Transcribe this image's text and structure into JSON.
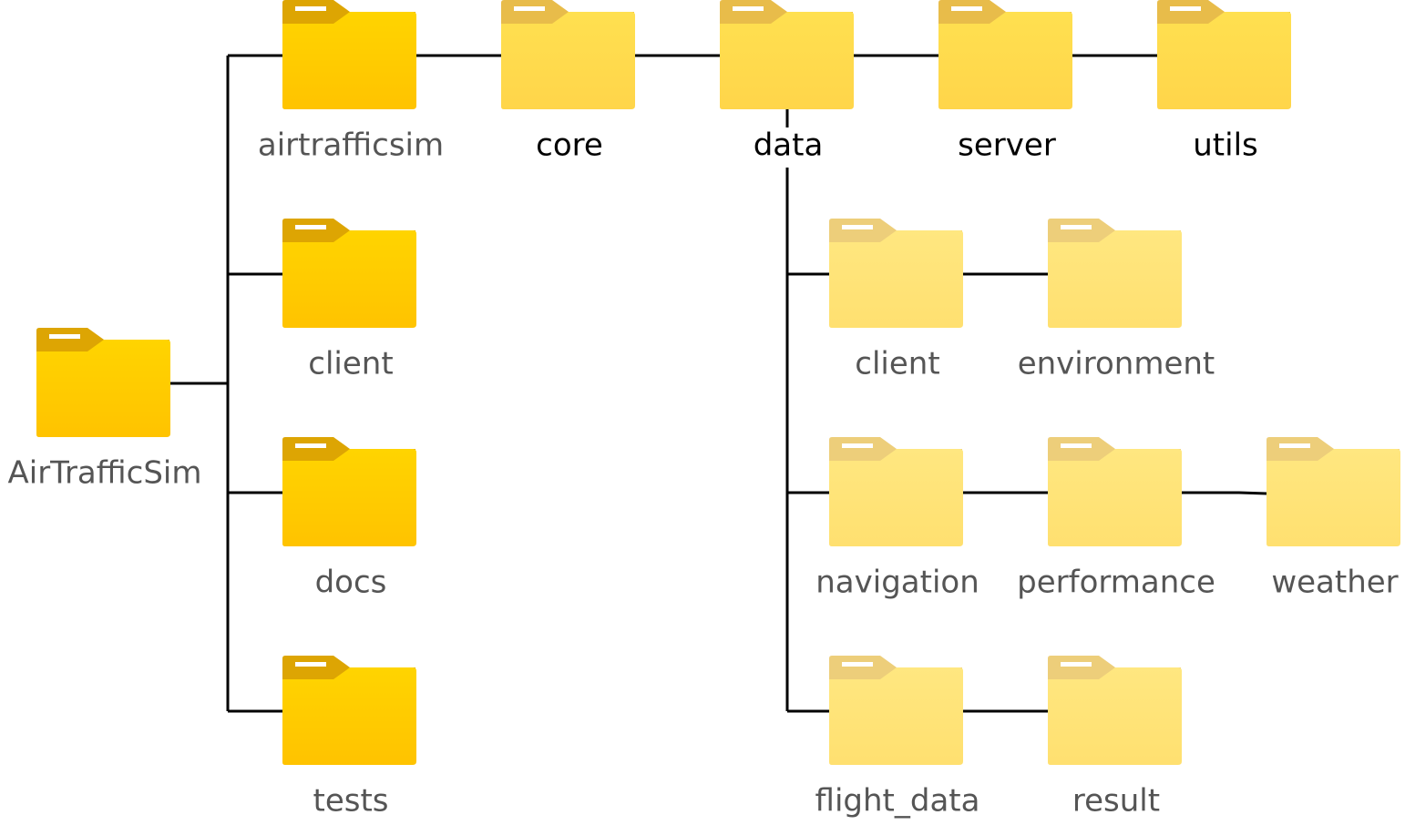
{
  "colors": {
    "line": "#000000",
    "label_gray": "#555555",
    "label_black": "#000000",
    "level1": {
      "tab": "#DDA503",
      "top": "#FFD400",
      "bottom": "#FFC300"
    },
    "level2": {
      "tab": "#E8BC4A",
      "top": "#FFE050",
      "bottom": "#FFD54A"
    },
    "level3": {
      "tab": "#EDCE7A",
      "top": "#FFE780",
      "bottom": "#FFE070"
    },
    "tab_stripe": "#FFFFFF"
  },
  "folders": [
    {
      "id": "airtrafficsim-root",
      "label": "AirTrafficSim",
      "icon": "folder-icon",
      "level": "level1",
      "label_color": "label_gray"
    },
    {
      "id": "airtrafficsim",
      "label": "airtrafficsim",
      "icon": "folder-icon",
      "level": "level1",
      "label_color": "label_gray"
    },
    {
      "id": "client-top",
      "label": "client",
      "icon": "folder-icon",
      "level": "level1",
      "label_color": "label_gray"
    },
    {
      "id": "docs",
      "label": "docs",
      "icon": "folder-icon",
      "level": "level1",
      "label_color": "label_gray"
    },
    {
      "id": "tests",
      "label": "tests",
      "icon": "folder-icon",
      "level": "level1",
      "label_color": "label_gray"
    },
    {
      "id": "core",
      "label": "core",
      "icon": "folder-icon",
      "level": "level2",
      "label_color": "label_black"
    },
    {
      "id": "data",
      "label": "data",
      "icon": "folder-icon",
      "level": "level2",
      "label_color": "label_black"
    },
    {
      "id": "server",
      "label": "server",
      "icon": "folder-icon",
      "level": "level2",
      "label_color": "label_black"
    },
    {
      "id": "utils",
      "label": "utils",
      "icon": "folder-icon",
      "level": "level2",
      "label_color": "label_black"
    },
    {
      "id": "client-data",
      "label": "client",
      "icon": "folder-icon",
      "level": "level3",
      "label_color": "label_gray"
    },
    {
      "id": "environment",
      "label": "environment",
      "icon": "folder-icon",
      "level": "level3",
      "label_color": "label_gray"
    },
    {
      "id": "navigation",
      "label": "navigation",
      "icon": "folder-icon",
      "level": "level3",
      "label_color": "label_gray"
    },
    {
      "id": "performance",
      "label": "performance",
      "icon": "folder-icon",
      "level": "level3",
      "label_color": "label_gray"
    },
    {
      "id": "weather",
      "label": "weather",
      "icon": "folder-icon",
      "level": "level3",
      "label_color": "label_gray"
    },
    {
      "id": "flight_data",
      "label": "flight_data",
      "icon": "folder-icon",
      "level": "level3",
      "label_color": "label_gray"
    },
    {
      "id": "result",
      "label": "result",
      "icon": "folder-icon",
      "level": "level3",
      "label_color": "label_gray"
    }
  ],
  "edges": [
    [
      "airtrafficsim-root",
      "airtrafficsim"
    ],
    [
      "airtrafficsim-root",
      "client-top"
    ],
    [
      "airtrafficsim-root",
      "docs"
    ],
    [
      "airtrafficsim-root",
      "tests"
    ],
    [
      "airtrafficsim",
      "core"
    ],
    [
      "core",
      "data"
    ],
    [
      "data",
      "server"
    ],
    [
      "server",
      "utils"
    ],
    [
      "data",
      "client-data"
    ],
    [
      "data",
      "navigation"
    ],
    [
      "data",
      "flight_data"
    ],
    [
      "client-data",
      "environment"
    ],
    [
      "navigation",
      "performance"
    ],
    [
      "performance",
      "weather"
    ],
    [
      "flight_data",
      "result"
    ]
  ]
}
